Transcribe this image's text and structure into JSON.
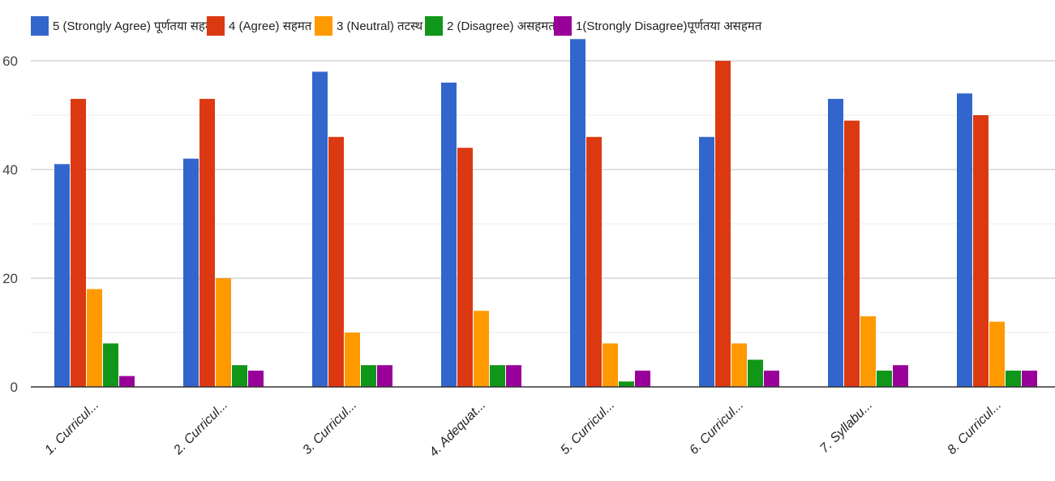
{
  "chart_data": {
    "type": "bar",
    "title": "",
    "xlabel": "",
    "ylabel": "",
    "ylim": [
      0,
      65
    ],
    "yticks": [
      0,
      20,
      40,
      60
    ],
    "grid": true,
    "legend_position": "top",
    "categories": [
      "1. Curricul...",
      "2. Curricul...",
      "3. Curricul...",
      "4. Adequat...",
      "5. Curricul...",
      "6. Curricul...",
      "7. Syllabu...",
      "8. Curricul..."
    ],
    "series": [
      {
        "name": "5 (Strongly Agree) पूर्णतया सहमत",
        "color": "#3366cc",
        "values": [
          41,
          42,
          58,
          56,
          64,
          46,
          53,
          54
        ]
      },
      {
        "name": "4 (Agree) सहमत",
        "color": "#dc3912",
        "values": [
          53,
          53,
          46,
          44,
          46,
          60,
          49,
          50
        ]
      },
      {
        "name": "3 (Neutral) तटस्थ",
        "color": "#ff9900",
        "values": [
          18,
          20,
          10,
          14,
          8,
          8,
          13,
          12
        ]
      },
      {
        "name": "2 (Disagree) असहमत",
        "color": "#109618",
        "values": [
          8,
          4,
          4,
          4,
          1,
          5,
          3,
          3
        ]
      },
      {
        "name": "1(Strongly Disagree)पूर्णतया असहमत",
        "color": "#990099",
        "values": [
          2,
          3,
          4,
          4,
          3,
          3,
          4,
          3
        ]
      }
    ]
  }
}
